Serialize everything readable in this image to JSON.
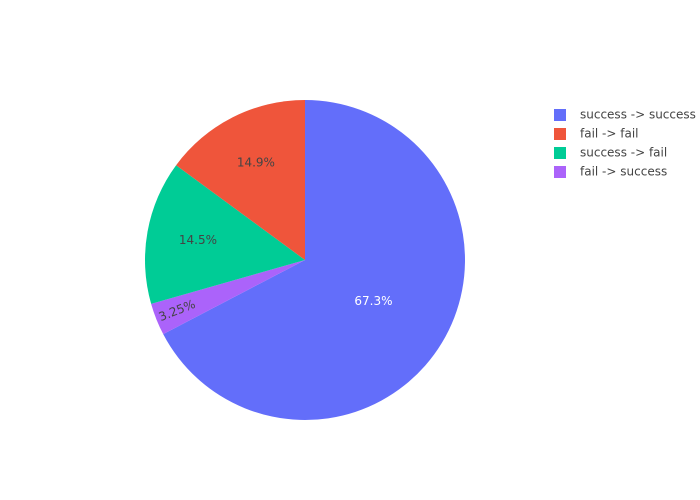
{
  "chart_data": {
    "type": "pie",
    "categories": [
      "success -> success",
      "fail -> fail",
      "success -> fail",
      "fail -> success"
    ],
    "values": [
      67.3,
      14.9,
      14.5,
      3.25
    ],
    "value_labels": [
      "67.3%",
      "14.9%",
      "14.5%",
      "3.25%"
    ],
    "colors": [
      "#636efa",
      "#ef553b",
      "#00cc96",
      "#ab63fa"
    ],
    "legend": "right"
  }
}
